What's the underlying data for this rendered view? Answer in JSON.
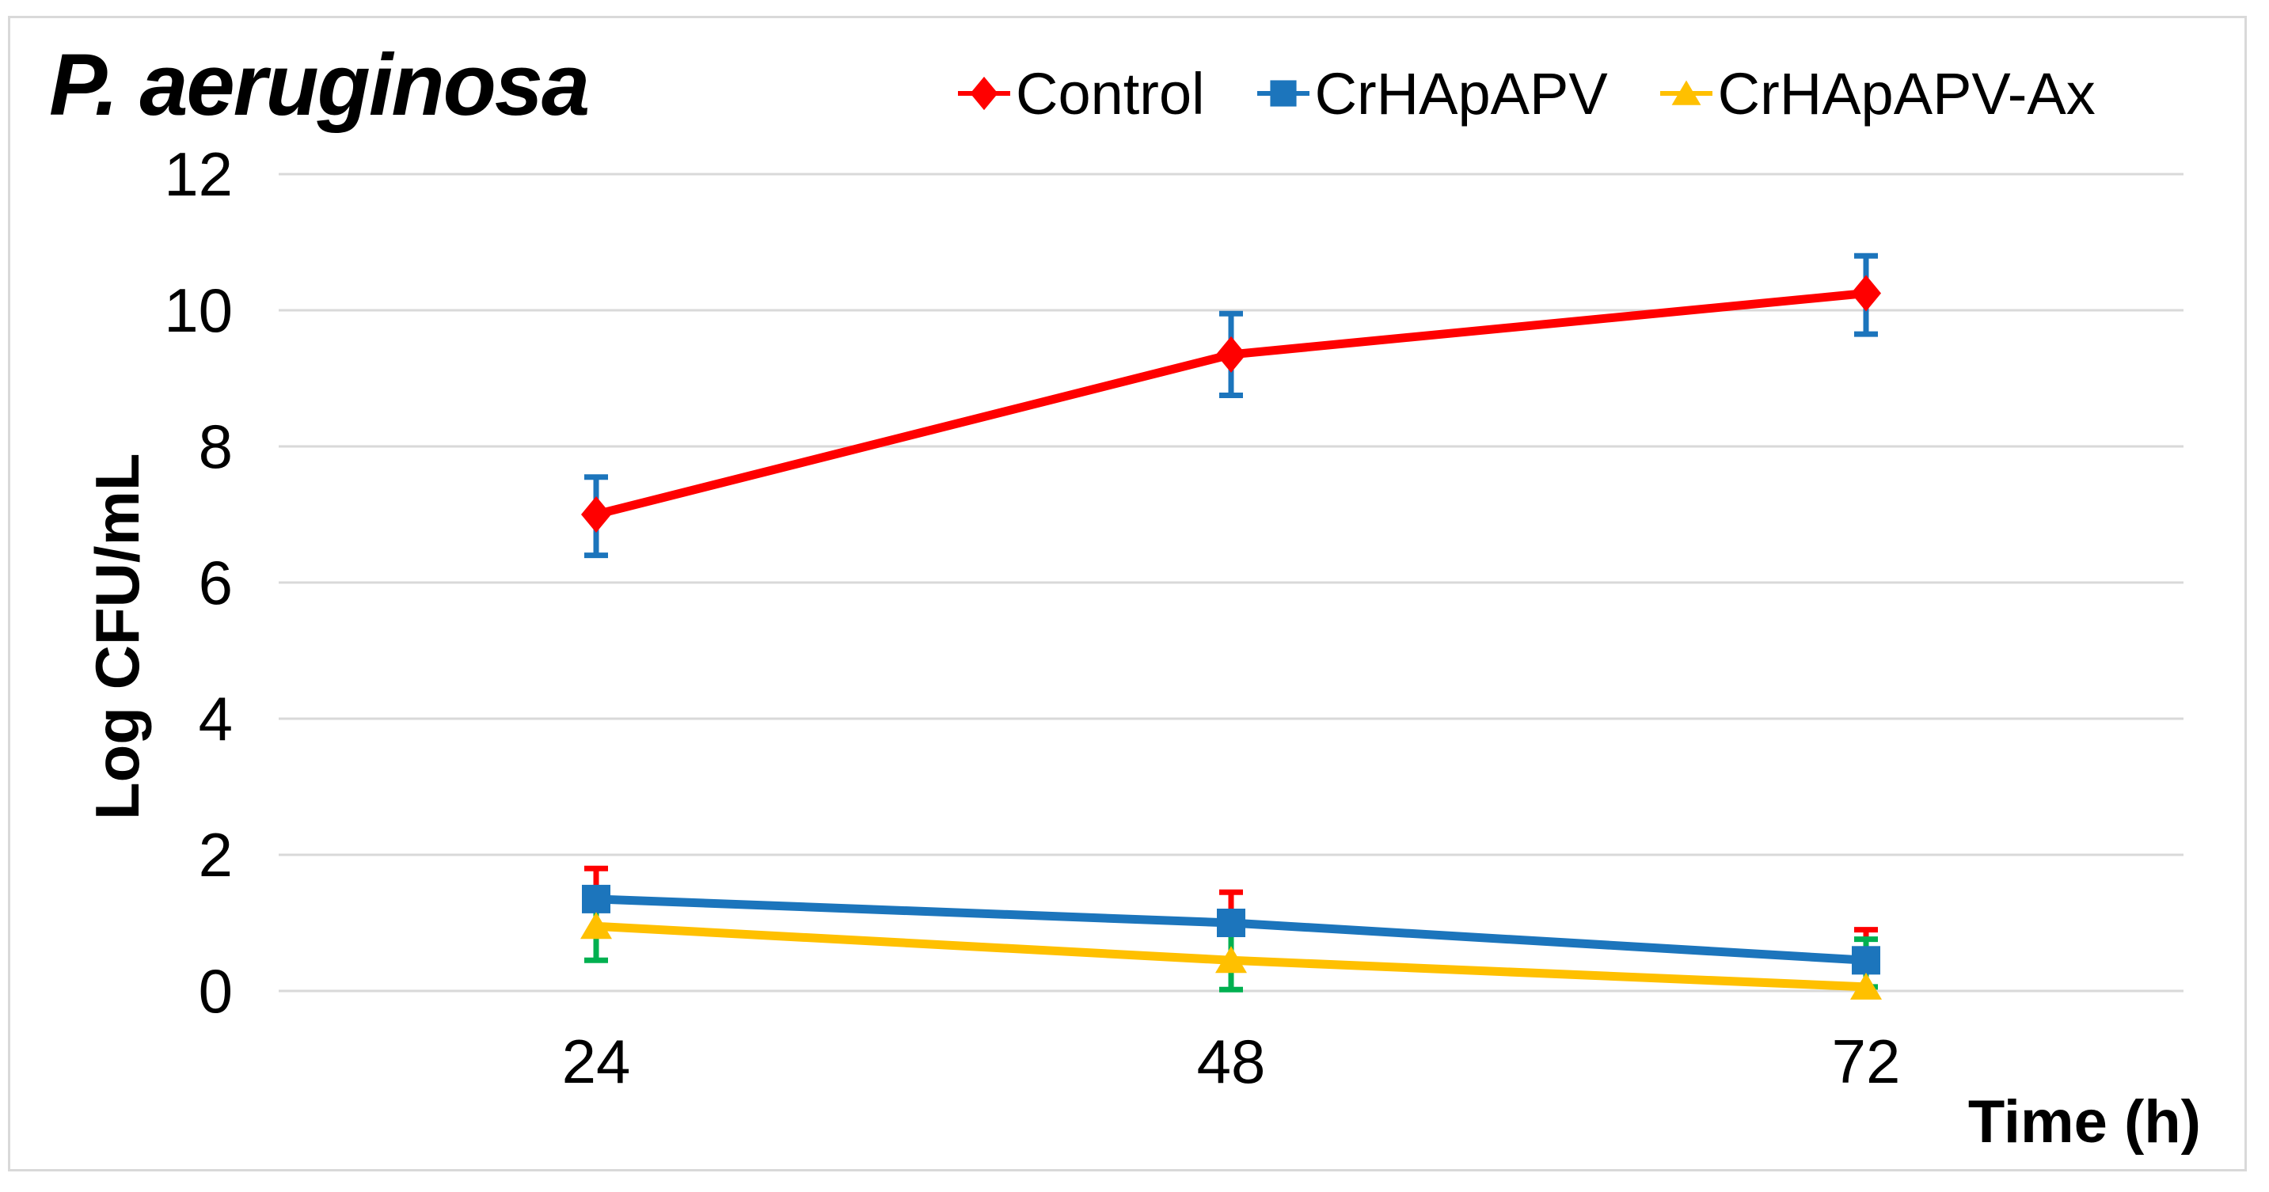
{
  "figure": {
    "background": "#FFFFFF",
    "border_color": "#D9D9D9"
  },
  "chart_data": {
    "type": "line",
    "title": "P. aeruginosa",
    "title_style": "bold-italic",
    "xlabel": "Time (h)",
    "ylabel": "Log CFU/mL",
    "categories": [
      "24",
      "48",
      "72"
    ],
    "y_ticks": [
      0,
      2,
      4,
      6,
      8,
      10,
      12
    ],
    "ylim": [
      0,
      12
    ],
    "grid": "horizontal",
    "gridline_color": "#D9D9D9",
    "text_color": "#000000",
    "legend_position": "top",
    "series": [
      {
        "name": "Control",
        "marker": "diamond",
        "color": "#FF0000",
        "error_bar_color": "#1C75BC",
        "values": [
          7.0,
          9.35,
          10.25
        ],
        "error_low": [
          6.4,
          8.75,
          9.65
        ],
        "error_high": [
          7.55,
          9.95,
          10.8
        ]
      },
      {
        "name": "CrHApAPV",
        "marker": "square",
        "color": "#1C75BC",
        "error_bar_color": "#FF0000",
        "values": [
          1.35,
          1.0,
          0.45
        ],
        "error_low": [
          1.35,
          1.0,
          0.45
        ],
        "error_high": [
          1.8,
          1.45,
          0.9
        ]
      },
      {
        "name": "CrHApAPV-Ax",
        "marker": "triangle",
        "color": "#FFC000",
        "error_bar_color": "#00B050",
        "values": [
          0.95,
          0.45,
          0.06
        ],
        "error_low": [
          0.45,
          0.02,
          0.06
        ],
        "error_high": [
          1.35,
          0.98,
          0.76
        ]
      }
    ]
  }
}
